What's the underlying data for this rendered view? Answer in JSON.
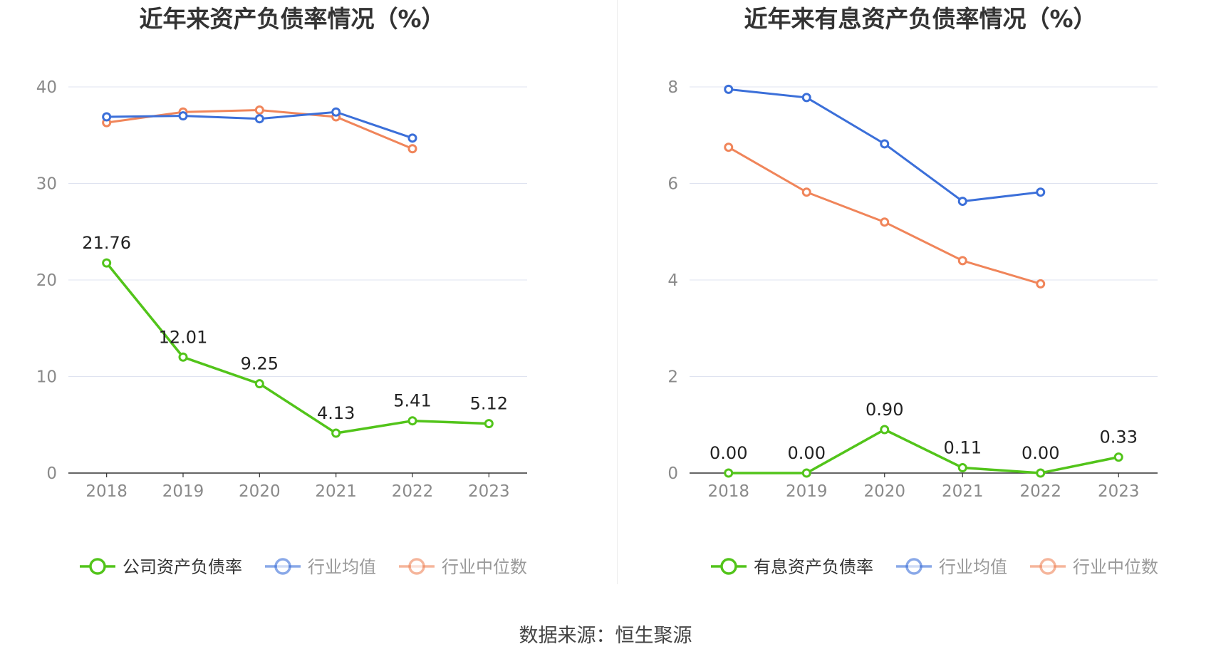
{
  "charts": [
    {
      "title": "近年来资产负债率情况（%）",
      "type": "line",
      "categories": [
        "2018",
        "2019",
        "2020",
        "2021",
        "2022",
        "2023"
      ],
      "ylim": [
        0,
        40
      ],
      "yticks": [
        0,
        10,
        20,
        30,
        40
      ],
      "ytick_labels": [
        "0",
        "10",
        "20",
        "30",
        "40"
      ],
      "series": [
        {
          "name": "公司资产负债率",
          "color": "#52c41a",
          "values": [
            21.76,
            12.01,
            9.25,
            4.13,
            5.41,
            5.12
          ],
          "labels": [
            "21.76",
            "12.01",
            "9.25",
            "4.13",
            "5.41",
            "5.12"
          ]
        },
        {
          "name": "行业均值",
          "color": "#3b6fd9",
          "values": [
            36.9,
            37.0,
            36.7,
            37.4,
            34.7,
            null
          ]
        },
        {
          "name": "行业中位数",
          "color": "#f0855a",
          "values": [
            36.3,
            37.4,
            37.6,
            36.9,
            33.6,
            null
          ]
        }
      ]
    },
    {
      "title": "近年来有息资产负债率情况（%）",
      "type": "line",
      "categories": [
        "2018",
        "2019",
        "2020",
        "2021",
        "2022",
        "2023"
      ],
      "ylim": [
        0,
        8
      ],
      "yticks": [
        0,
        2,
        4,
        6,
        8
      ],
      "ytick_labels": [
        "0",
        "2",
        "4",
        "6",
        "8"
      ],
      "series": [
        {
          "name": "有息资产负债率",
          "color": "#52c41a",
          "values": [
            0.0,
            0.0,
            0.9,
            0.11,
            0.0,
            0.33
          ],
          "labels": [
            "0.00",
            "0.00",
            "0.90",
            "0.11",
            "0.00",
            "0.33"
          ]
        },
        {
          "name": "行业均值",
          "color": "#3b6fd9",
          "values": [
            7.95,
            7.78,
            6.82,
            5.63,
            5.82,
            null
          ]
        },
        {
          "name": "行业中位数",
          "color": "#f0855a",
          "values": [
            6.75,
            5.82,
            5.2,
            4.4,
            3.92,
            null
          ]
        }
      ]
    }
  ],
  "source_text": "数据来源：恒生聚源",
  "colors": {
    "grid": "#dfe3f0",
    "axis": "#333333",
    "tick_text": "#8a8a8a",
    "title": "#333333",
    "label_text": "#222222"
  }
}
